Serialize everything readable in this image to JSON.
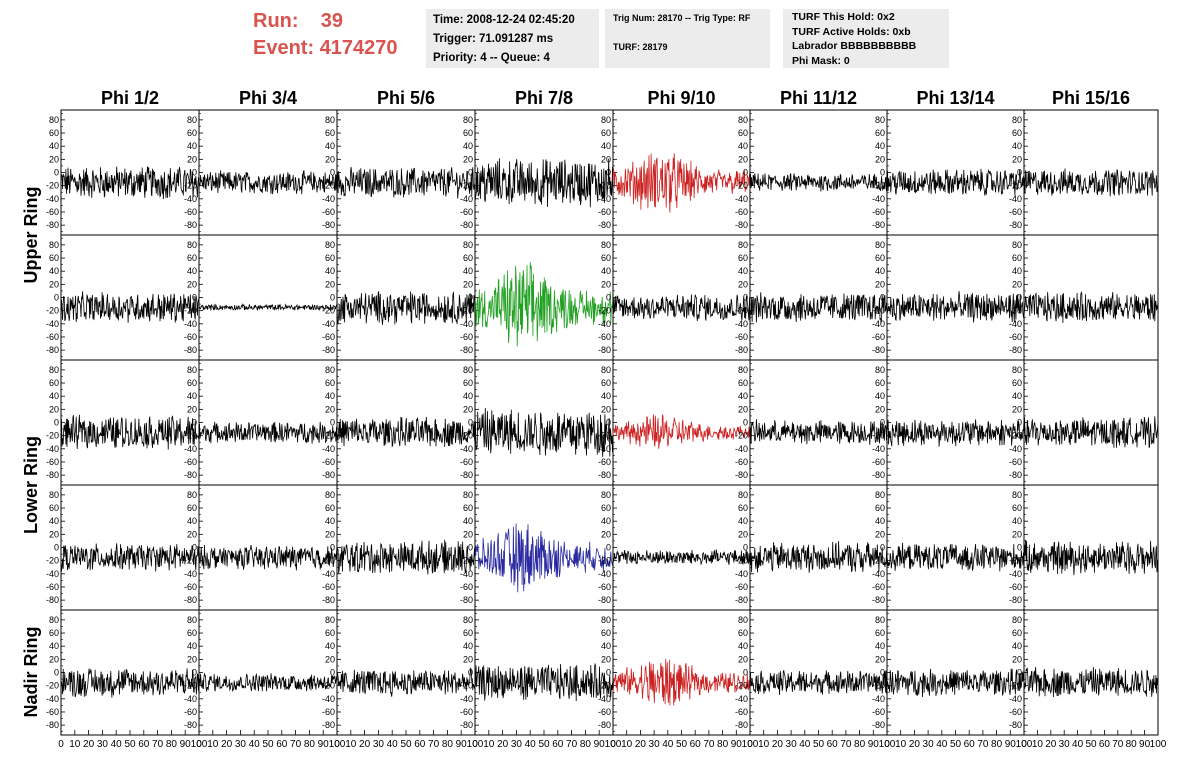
{
  "header": {
    "run_label": "Run:",
    "run_value": "39",
    "event_label": "Event:",
    "event_value": "4174270",
    "time": "Time: 2008-12-24 02:45:20",
    "trigger": "Trigger: 71.091287 ms",
    "priority": "Priority: 4 -- Queue: 4",
    "trig_num": "Trig Num: 28170 -- Trig Type: RF",
    "turf": "TURF: 28179",
    "turf_this_hold": "TURF This Hold: 0x2",
    "turf_active_holds": "TURF Active Holds: 0xb",
    "labrador": "Labrador BBBBBBBBBB",
    "phi_mask": "Phi Mask: 0"
  },
  "colors": {
    "run_text": "#d9534f",
    "info_bg": "#ececec",
    "trace_default": "#000000",
    "trace_red": "#cc2222",
    "trace_green": "#22a022",
    "trace_blue": "#2a2aa0"
  },
  "chart_data": {
    "type": "line",
    "columns": [
      "Phi 1/2",
      "Phi 3/4",
      "Phi 5/6",
      "Phi 7/8",
      "Phi 9/10",
      "Phi 11/12",
      "Phi 13/14",
      "Phi 15/16"
    ],
    "rings": [
      "Upper Ring",
      "Lower Ring",
      "Nadir Ring"
    ],
    "ylim": [
      -95,
      95
    ],
    "xlim": [
      0,
      100
    ],
    "yticks": [
      80,
      60,
      40,
      20,
      0,
      -20,
      -40,
      -60,
      -80
    ],
    "xticks": [
      0,
      10,
      20,
      30,
      40,
      50,
      60,
      70,
      80,
      90,
      100
    ],
    "xtick_labels": [
      "0",
      "10",
      "20",
      "30",
      "40",
      "50",
      "60",
      "70",
      "80",
      "90",
      "100"
    ],
    "grid": false,
    "row_offset": -15,
    "amplitudes": [
      [
        22,
        15,
        20,
        32,
        35,
        12,
        18,
        18
      ],
      [
        20,
        4,
        22,
        48,
        18,
        20,
        20,
        20
      ],
      [
        22,
        14,
        20,
        32,
        20,
        16,
        18,
        20
      ],
      [
        18,
        16,
        22,
        38,
        10,
        20,
        18,
        22
      ],
      [
        20,
        12,
        18,
        24,
        28,
        16,
        18,
        20
      ]
    ],
    "highlight": [
      {
        "row": 0,
        "col": 4,
        "color": "red"
      },
      {
        "row": 1,
        "col": 3,
        "color": "green"
      },
      {
        "row": 2,
        "col": 4,
        "color": "red"
      },
      {
        "row": 3,
        "col": 3,
        "color": "blue"
      },
      {
        "row": 4,
        "col": 4,
        "color": "red"
      }
    ]
  }
}
